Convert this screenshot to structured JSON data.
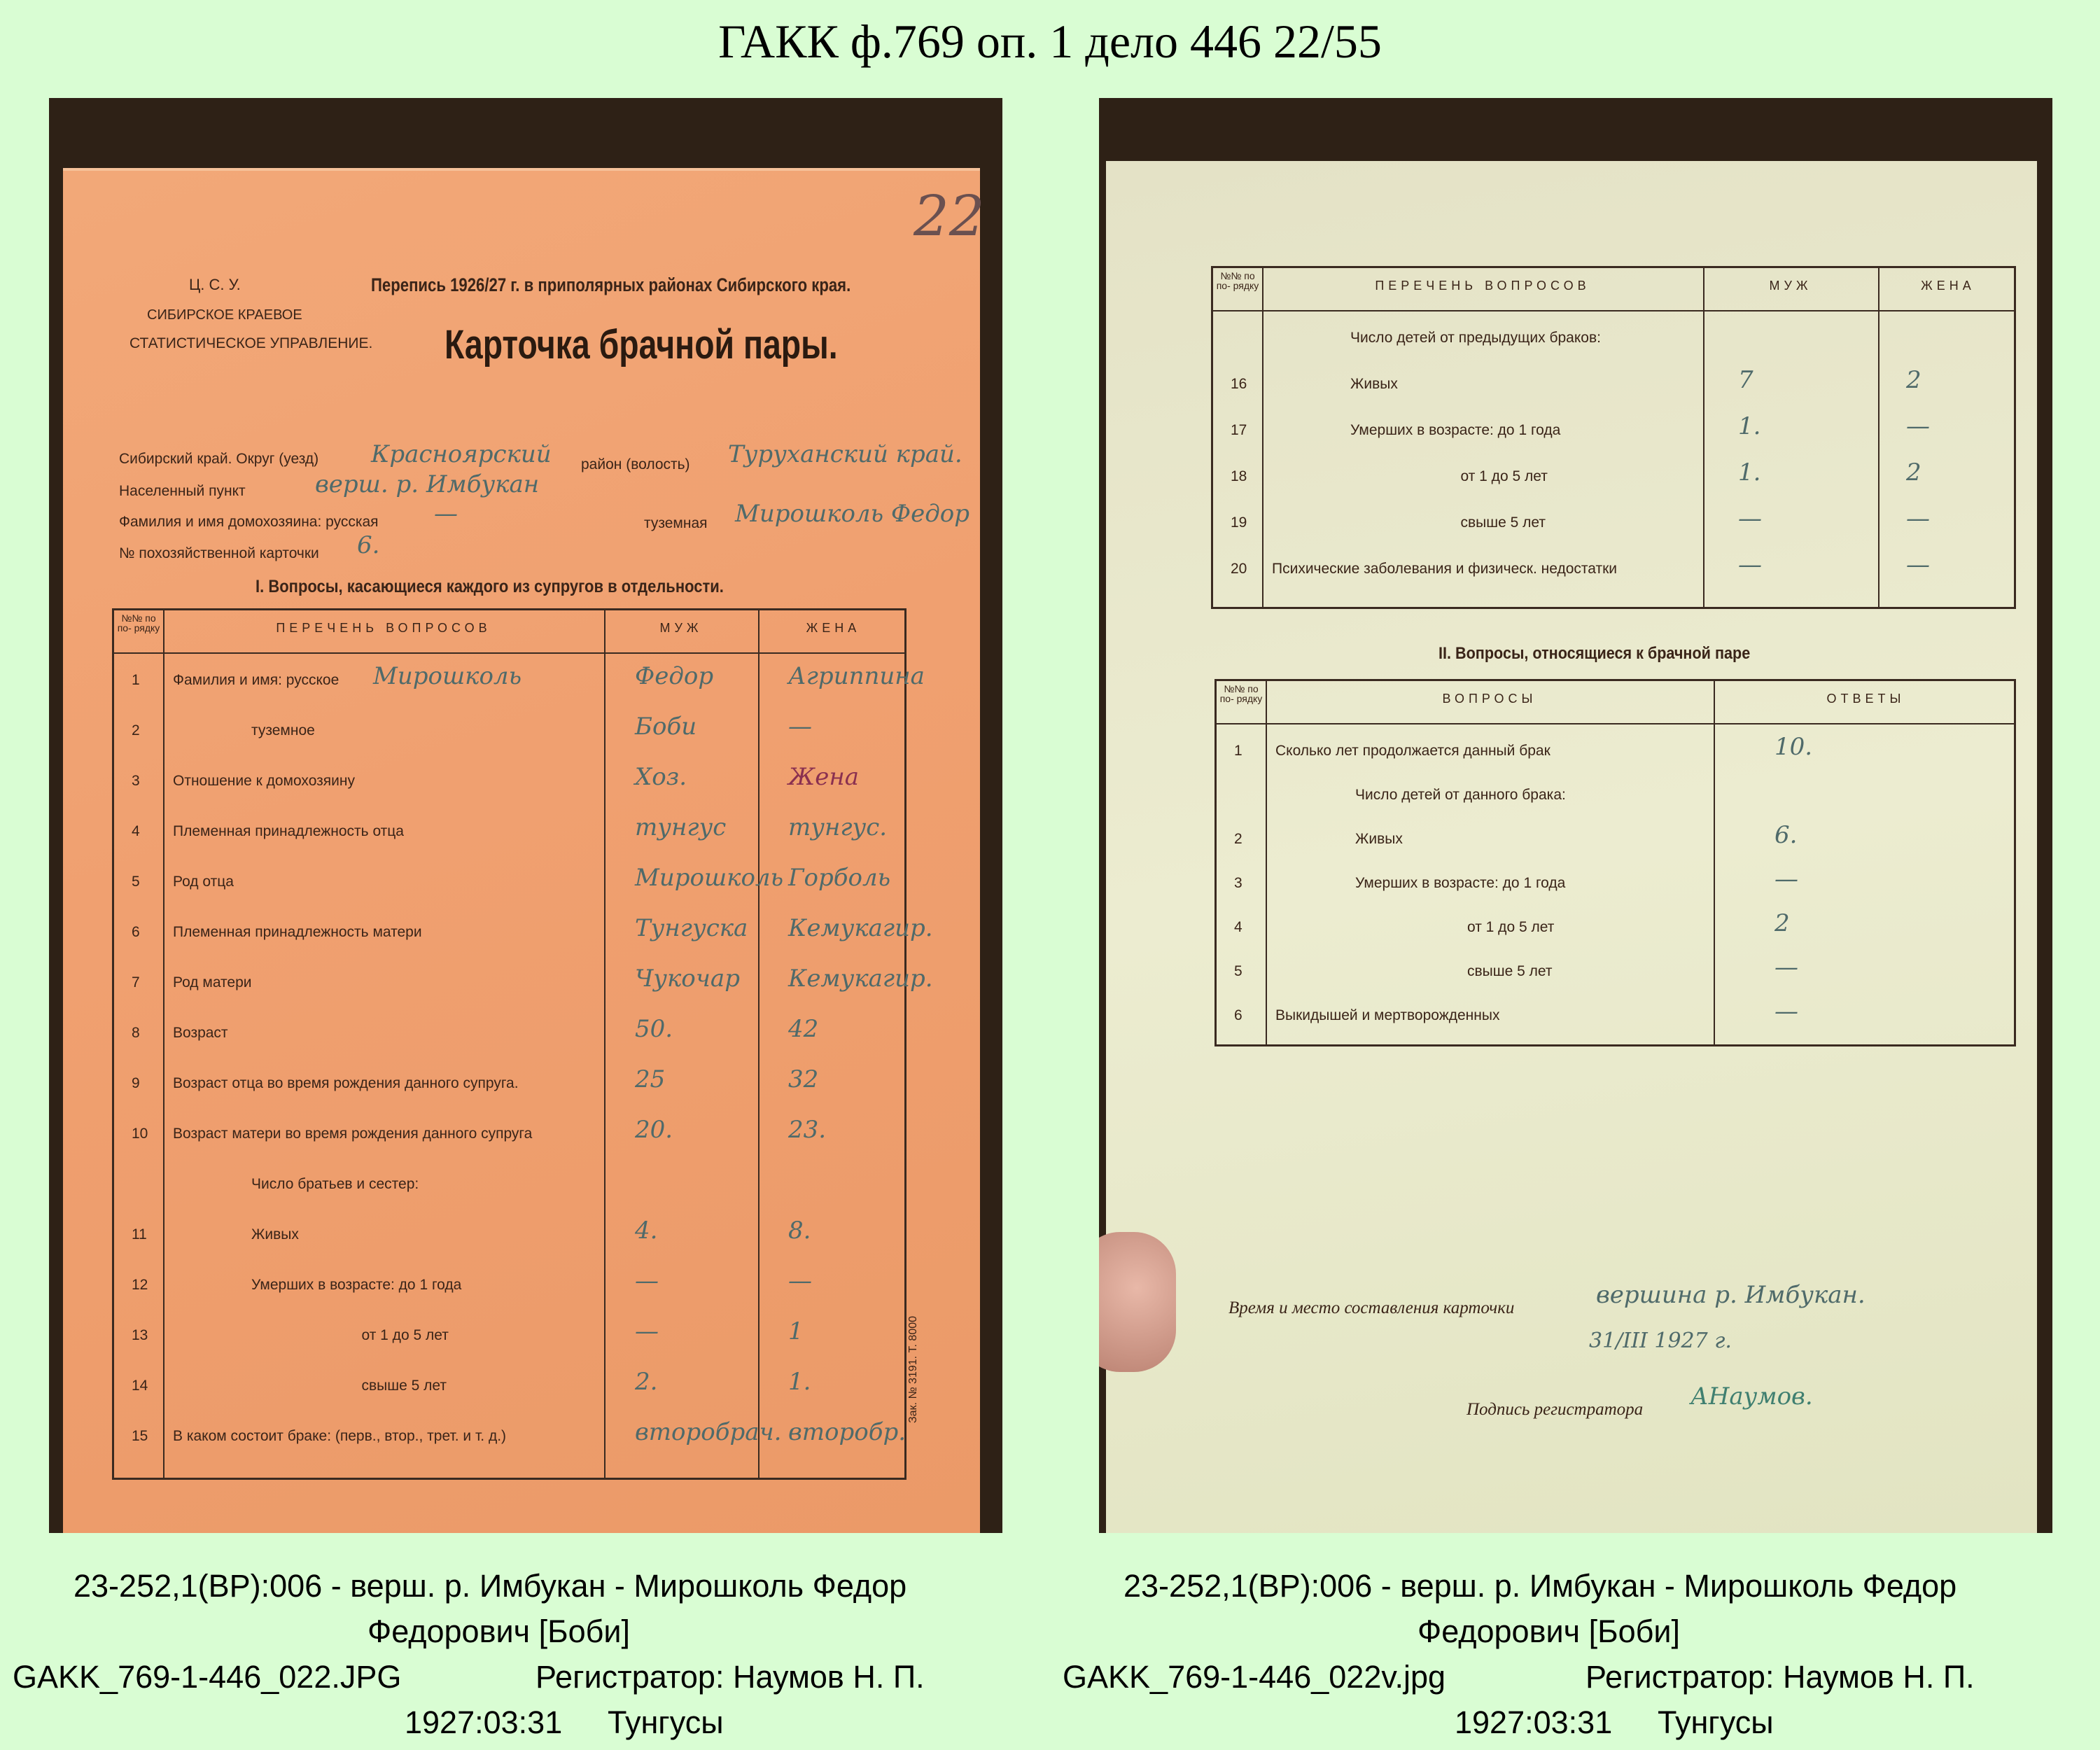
{
  "title": "ГАКК ф.769 оп. 1 дело 446 22/55",
  "left_card": {
    "org_lines": [
      "Ц. С. У.",
      "СИБИРСКОЕ КРАЕВОЕ",
      "СТАТИСТИЧЕСКОЕ УПРАВЛЕНИЕ."
    ],
    "census": "Перепись 1926/27 г. в приполярных районах Сибирского края.",
    "heading": "Карточка брачной пары.",
    "page_number": "22",
    "fields": [
      {
        "label": "Сибирский край. Округ (уезд)",
        "value": "Красноярский"
      },
      {
        "label": "район (волость)",
        "value": "Туруханский край."
      },
      {
        "label": "Населенный пункт",
        "value": "верш. р. Имбукан"
      },
      {
        "label": "Фамилия и имя домохозяина: русская",
        "value": "—"
      },
      {
        "label": "туземная",
        "value": "Мирошколь Федор"
      },
      {
        "label": "№ похозяйственной карточки",
        "value": "6."
      }
    ],
    "section": "I. Вопросы, касающиеся каждого из супругов в отдельности.",
    "headers": {
      "num": "№№ по по- рядку",
      "questions": "ПЕРЕЧЕНЬ ВОПРОСОВ",
      "husband": "МУЖ",
      "wife": "ЖЕНА"
    },
    "rows": [
      {
        "n": "1",
        "q": "Фамилия и имя: русское",
        "extra": "Мирошколь",
        "m": "Федор",
        "w": "Агриппина"
      },
      {
        "n": "2",
        "q": "туземное",
        "m": "Боби",
        "w": "—"
      },
      {
        "n": "3",
        "q": "Отношение к домохозяину",
        "m": "Хоз.",
        "w": "Жена"
      },
      {
        "n": "4",
        "q": "Племенная принадлежность отца",
        "m": "тунгус",
        "w": "тунгус."
      },
      {
        "n": "5",
        "q": "Род отца",
        "m": "Мирошколь",
        "w": "Горболь"
      },
      {
        "n": "6",
        "q": "Племенная принадлежность матери",
        "m": "Тунгуска",
        "w": "Кемукагир."
      },
      {
        "n": "7",
        "q": "Род матери",
        "m": "Чукочар",
        "w": "Кемукагир."
      },
      {
        "n": "8",
        "q": "Возраст",
        "m": "50.",
        "w": "42"
      },
      {
        "n": "9",
        "q": "Возраст отца во время рождения данного супруга.",
        "m": "25",
        "w": "32"
      },
      {
        "n": "10",
        "q": "Возраст матери во время рождения данного супруга",
        "m": "20.",
        "w": "23."
      },
      {
        "n": "",
        "q": "Число братьев и сестер:",
        "m": "",
        "w": ""
      },
      {
        "n": "11",
        "q": "Живых",
        "m": "4.",
        "w": "8."
      },
      {
        "n": "12",
        "q": "Умерших в возрасте: до 1 года",
        "m": "—",
        "w": "—"
      },
      {
        "n": "13",
        "q": "от 1 до 5 лет",
        "m": "—",
        "w": "1"
      },
      {
        "n": "14",
        "q": "свыше 5 лет",
        "m": "2.",
        "w": "1."
      },
      {
        "n": "15",
        "q": "В каком состоит браке: (перв., втор., трет. и т. д.)",
        "m": "второбрач.",
        "w": "второбр."
      }
    ],
    "print_note": "Зак. № 3191. Т. 8000"
  },
  "right_card": {
    "headers": {
      "num": "№№ по по- рядку",
      "questions": "ПЕРЕЧЕНЬ ВОПРОСОВ",
      "husband": "МУЖ",
      "wife": "ЖЕНА"
    },
    "rows": [
      {
        "n": "",
        "q": "Число детей от предыдущих браков:",
        "m": "",
        "w": ""
      },
      {
        "n": "16",
        "q": "Живых",
        "m": "7",
        "w": "2"
      },
      {
        "n": "17",
        "q": "Умерших в возрасте: до 1 года",
        "m": "1.",
        "w": "—"
      },
      {
        "n": "18",
        "q": "от 1 до 5 лет",
        "m": "1.",
        "w": "2"
      },
      {
        "n": "19",
        "q": "свыше 5 лет",
        "m": "—",
        "w": "—"
      },
      {
        "n": "20",
        "q": "Психические заболевания и физическ. недостатки",
        "m": "—",
        "w": "—"
      }
    ],
    "section": "II. Вопросы, относящиеся к брачной паре",
    "headers2": {
      "num": "№№ по по- рядку",
      "questions": "ВОПРОСЫ",
      "answers": "ОТВЕТЫ"
    },
    "rows2": [
      {
        "n": "1",
        "q": "Сколько лет продолжается данный брак",
        "a": "10."
      },
      {
        "n": "",
        "q": "Число детей от данного брака:",
        "a": ""
      },
      {
        "n": "2",
        "q": "Живых",
        "a": "6."
      },
      {
        "n": "3",
        "q": "Умерших в возрасте: до 1 года",
        "a": "—"
      },
      {
        "n": "4",
        "q": "от 1 до 5 лет",
        "a": "2"
      },
      {
        "n": "5",
        "q": "свыше 5 лет",
        "a": "—"
      },
      {
        "n": "6",
        "q": "Выкидышей и мертворожденных",
        "a": "—"
      }
    ],
    "place_label": "Время и место составления карточки",
    "place_value": "вершина р. Имбукан.",
    "date_value": "31/III 1927 г.",
    "signature_label": "Подпись регистратора",
    "signature_value": "АНаумов."
  },
  "captions": [
    {
      "line1": "23-252,1(ВР):006 - верш. р. Имбукан - Мирошколь Федор",
      "line2": "Федорович [Боби]",
      "file": "GAKK_769-1-446_022.JPG",
      "registrar": "Регистратор: Наумов Н. П.",
      "date": "1927:03:31",
      "people": "Тунгусы"
    },
    {
      "line1": "23-252,1(ВР):006 - верш. р. Имбукан - Мирошколь Федор",
      "line2": "Федорович [Боби]",
      "file": "GAKK_769-1-446_022v.jpg",
      "registrar": "Регистратор: Наумов Н. П.",
      "date": "1927:03:31",
      "people": "Тунгусы"
    }
  ]
}
